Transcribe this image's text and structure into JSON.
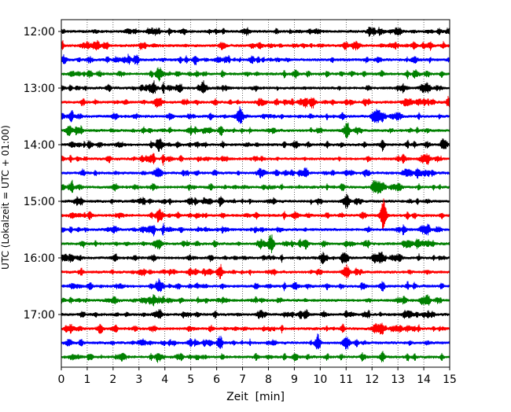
{
  "chart_data": {
    "type": "line",
    "chart_kind": "helicorder",
    "title": "",
    "xlabel": "Zeit  [min]",
    "ylabel": "UTC (Lokalzeit = UTC + 01:00)",
    "xlim": [
      0,
      15
    ],
    "x_ticks": [
      0,
      1,
      2,
      3,
      4,
      5,
      6,
      7,
      8,
      9,
      10,
      11,
      12,
      13,
      14,
      15
    ],
    "y_tick_labels": [
      "12:00",
      "13:00",
      "14:00",
      "15:00",
      "16:00",
      "17:00"
    ],
    "traces_per_hour": 4,
    "trace_start_times": [
      "12:00",
      "12:15",
      "12:30",
      "12:45",
      "13:00",
      "13:15",
      "13:30",
      "13:45",
      "14:00",
      "14:15",
      "14:30",
      "14:45",
      "15:00",
      "15:15",
      "15:30",
      "15:45",
      "16:00",
      "16:15",
      "16:30",
      "16:45",
      "17:00",
      "17:15",
      "17:30",
      "17:45"
    ],
    "color_cycle": [
      "#000000",
      "#ff0000",
      "#0000ff",
      "#008000"
    ],
    "grid": {
      "vertical": true,
      "style": "dotted"
    },
    "events": [
      {
        "trace": 4,
        "minute": 5.5,
        "amplitude": 0.7
      },
      {
        "trace": 5,
        "minute": 9.7,
        "amplitude": 0.6
      },
      {
        "trace": 5,
        "minute": 15.0,
        "amplitude": 0.7
      },
      {
        "trace": 6,
        "minute": 6.9,
        "amplitude": 0.9
      },
      {
        "trace": 7,
        "minute": 0.3,
        "amplitude": 0.5
      },
      {
        "trace": 8,
        "minute": 14.8,
        "amplitude": 0.5
      },
      {
        "trace": 13,
        "minute": 12.45,
        "amplitude": 1.3
      },
      {
        "trace": 15,
        "minute": 8.1,
        "amplitude": 1.0
      },
      {
        "trace": 16,
        "minute": 10.1,
        "amplitude": 0.5
      },
      {
        "trace": 16,
        "minute": 11.0,
        "amplitude": 0.5
      },
      {
        "trace": 21,
        "minute": 1.5,
        "amplitude": 0.5
      },
      {
        "trace": 22,
        "minute": 9.9,
        "amplitude": 0.6
      }
    ]
  }
}
